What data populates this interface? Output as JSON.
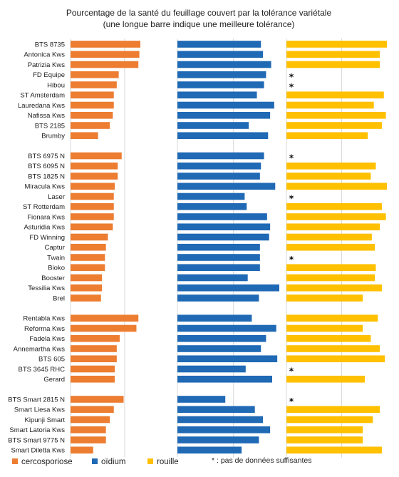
{
  "chart_data": {
    "type": "bar",
    "orientation": "horizontal",
    "title_lines": [
      "Pourcentage de la santé du feuillage couvert par la tolérance variétale",
      "(une longue barre indique une meilleure tolérance)"
    ],
    "groups": [
      [
        "BTS 8735",
        "Antonica Kws",
        "Patrizia Kws",
        "FD Equipe",
        "Hibou",
        "ST Amsterdam",
        "Lauredana Kws",
        "Nafissa Kws",
        "BTS 2185",
        "Brumby"
      ],
      [
        "BTS 6975 N",
        "BTS 6095 N",
        "BTS 1825 N",
        "Miracula Kws",
        "Laser",
        "ST Rotterdam",
        "Fionara Kws",
        "Asturidia Kws",
        "FD Winning",
        "Captur",
        "Twain",
        "Bioko",
        "Booster",
        "Tessilia Kws",
        "Brel"
      ],
      [
        "Rentabla Kws",
        "Reforma Kws",
        "Fadela Kws",
        "Annemartha Kws",
        "BTS 605",
        "BTS 3645 RHC",
        "Gerard"
      ],
      [
        "BTS Smart 2815 N",
        "Smart Liesa Kws",
        "Kipunji Smart",
        "Smart Latoria Kws",
        "BTS Smart 9775 N",
        "Smart Diletta Kws"
      ]
    ],
    "series": [
      {
        "name": "cercosporiose",
        "color": "#ED7D31",
        "values": [
          71,
          70,
          69,
          49,
          47,
          44,
          44,
          43,
          40,
          28,
          52,
          48,
          48,
          45,
          44,
          44,
          44,
          43,
          38,
          36,
          35,
          35,
          32,
          32,
          31,
          69,
          67,
          50,
          47,
          47,
          45,
          45,
          54,
          44,
          40,
          36,
          36,
          23
        ]
      },
      {
        "name": "oïdium",
        "color": "#1F69B5",
        "values": [
          82,
          84,
          92,
          87,
          85,
          78,
          95,
          91,
          70,
          89,
          85,
          82,
          81,
          96,
          66,
          68,
          88,
          91,
          90,
          81,
          81,
          81,
          69,
          100,
          80,
          73,
          97,
          87,
          82,
          98,
          67,
          93,
          47,
          76,
          84,
          91,
          80,
          63
        ]
      },
      {
        "name": "rouille",
        "color": "#FFC000",
        "values": [
          100,
          93,
          93,
          null,
          null,
          97,
          87,
          99,
          95,
          81,
          null,
          89,
          84,
          100,
          null,
          95,
          99,
          93,
          85,
          88,
          null,
          89,
          88,
          95,
          76,
          91,
          76,
          84,
          93,
          98,
          null,
          78,
          null,
          93,
          86,
          76,
          76,
          95
        ]
      }
    ],
    "star_marker": "*",
    "legend": [
      "cercosporiose",
      "oïdium",
      "rouille"
    ],
    "footnote": "* : pas de données suffisantes",
    "value_axis": {
      "min": 0,
      "max": 100,
      "unit": "%"
    },
    "grid": "vertical gridlines per panel",
    "legend_position": "bottom"
  }
}
